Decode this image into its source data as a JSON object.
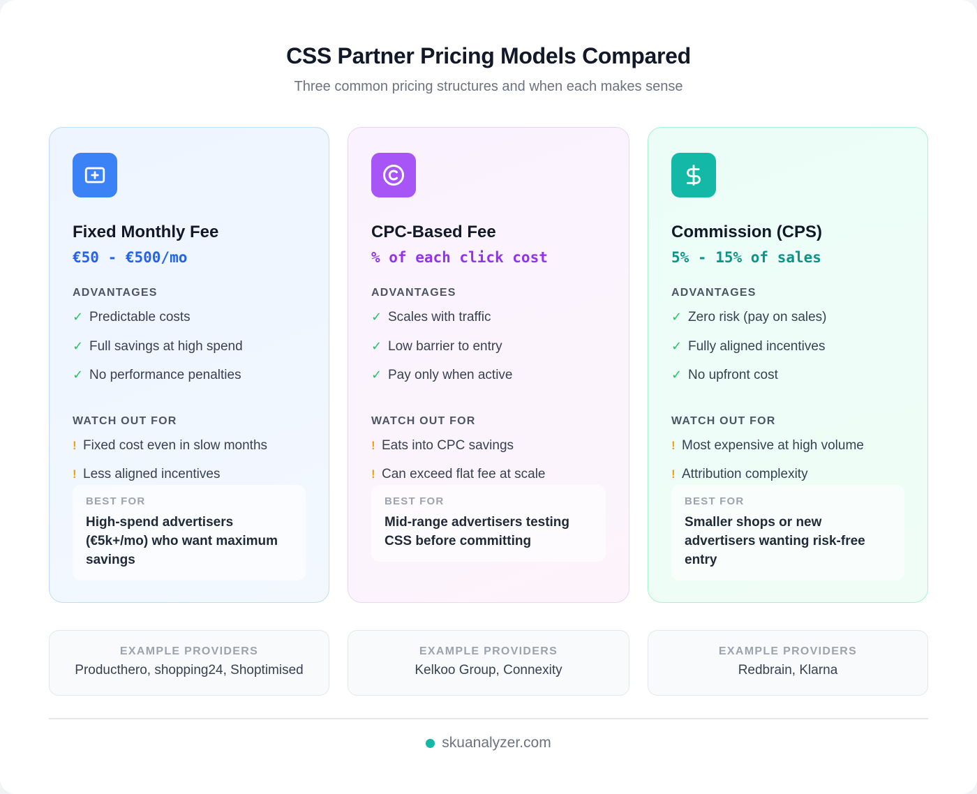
{
  "header": {
    "title": "CSS Partner Pricing Models Compared",
    "subtitle": "Three common pricing structures and when each makes sense"
  },
  "cards": [
    {
      "icon": "plus-square-icon",
      "accent": "#3b82f6",
      "title": "Fixed Monthly Fee",
      "price": "€50 - €500/mo",
      "advantages_label": "ADVANTAGES",
      "advantages": [
        "Predictable costs",
        "Full savings at high spend",
        "No performance penalties"
      ],
      "watch_label": "WATCH OUT FOR",
      "watch": [
        "Fixed cost even in slow months",
        "Less aligned incentives"
      ],
      "best_label": "BEST FOR",
      "best_text": "High-spend advertisers (€5k+/mo) who want maximum savings"
    },
    {
      "icon": "copyright-icon",
      "accent": "#a855f7",
      "title": "CPC-Based Fee",
      "price": "% of each click cost",
      "advantages_label": "ADVANTAGES",
      "advantages": [
        "Scales with traffic",
        "Low barrier to entry",
        "Pay only when active"
      ],
      "watch_label": "WATCH OUT FOR",
      "watch": [
        "Eats into CPC savings",
        "Can exceed flat fee at scale"
      ],
      "best_label": "BEST FOR",
      "best_text": "Mid-range advertisers testing CSS before committing"
    },
    {
      "icon": "dollar-icon",
      "accent": "#14b8a6",
      "title": "Commission (CPS)",
      "price": "5% - 15% of sales",
      "advantages_label": "ADVANTAGES",
      "advantages": [
        "Zero risk (pay on sales)",
        "Fully aligned incentives",
        "No upfront cost"
      ],
      "watch_label": "WATCH OUT FOR",
      "watch": [
        "Most expensive at high volume",
        "Attribution complexity"
      ],
      "best_label": "BEST FOR",
      "best_text": "Smaller shops or new advertisers wanting risk-free entry"
    }
  ],
  "providers": [
    {
      "label": "EXAMPLE PROVIDERS",
      "text": "Producthero, shopping24, Shoptimised"
    },
    {
      "label": "EXAMPLE PROVIDERS",
      "text": "Kelkoo Group, Connexity"
    },
    {
      "label": "EXAMPLE PROVIDERS",
      "text": "Redbrain, Klarna"
    }
  ],
  "icons": {
    "check": "✓",
    "warn": "!"
  },
  "footer": {
    "site": "skuanalyzer.com",
    "dot_color": "#14b8a6"
  }
}
